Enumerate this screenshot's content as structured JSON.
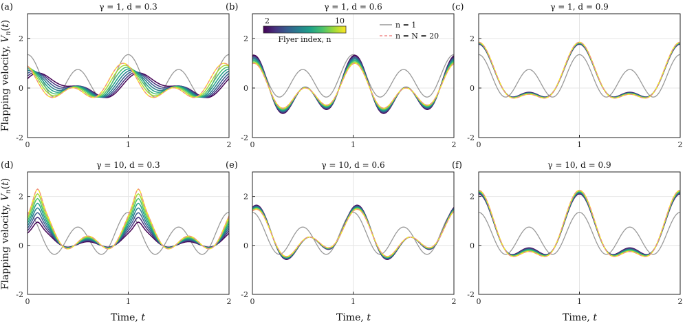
{
  "colors": {
    "reference_n1": "#999999",
    "last_flyer": "#f08a8a",
    "viridis": [
      "#440154",
      "#46327e",
      "#365c8d",
      "#277f8e",
      "#1fa187",
      "#4ac16d",
      "#a0da39",
      "#fde725"
    ]
  },
  "figure": {
    "xlabel": "Time, t",
    "ylabel": "Flapping velocity, V_n(t)",
    "xlabel_html": "Time, <tspan font-style='italic'>t</tspan>",
    "ylabel_html": "Flapping velocity, <tspan font-style='italic'>V</tspan><tspan font-style='italic' font-size='10' dy='3'>n</tspan><tspan dy='-3'>(</tspan><tspan font-style='italic'>t</tspan>)"
  },
  "legend": {
    "colorbar_label": "Flyer index, n",
    "colorbar_min": "2",
    "colorbar_max": "10",
    "entry_n1": "n = 1",
    "entry_last": "n = N = 20"
  },
  "chart_data": [
    {
      "panel": "(a)",
      "type": "line",
      "title": "γ = 1, d = 0.3",
      "gamma": 1,
      "d": 0.3,
      "xlim": [
        0,
        2
      ],
      "ylim": [
        -2,
        3
      ],
      "xticks": [
        0,
        1,
        2
      ],
      "yticks": [
        -2,
        0,
        2
      ],
      "series_summary": "n=1: ~1.4 peaks at t=0,1,2, ~-0.8 at t=0.25,0.75; flyers n>=2 peak ~0.9 at t≈0.93, min ~-0.9 at t≈0.72"
    },
    {
      "panel": "(b)",
      "type": "line",
      "title": "γ = 1, d = 0.6",
      "gamma": 1,
      "d": 0.6,
      "xlim": [
        0,
        2
      ],
      "ylim": [
        -2,
        3
      ],
      "xticks": [
        0,
        1,
        2
      ],
      "yticks": [
        -2,
        0,
        2
      ],
      "series_summary": "flyers peak ~1.0 at t≈1, min ~-1.2 at t≈0.3"
    },
    {
      "panel": "(c)",
      "type": "line",
      "title": "γ = 1, d = 0.9",
      "gamma": 1,
      "d": 0.9,
      "xlim": [
        0,
        2
      ],
      "ylim": [
        -2,
        3
      ],
      "xticks": [
        0,
        1,
        2
      ],
      "yticks": [
        -2,
        0,
        2
      ],
      "series_summary": "flyers peak ~1.85 at t≈1, min ~-1.0 at t≈0.3"
    },
    {
      "panel": "(d)",
      "type": "line",
      "title": "γ = 10, d = 0.3",
      "gamma": 10,
      "d": 0.3,
      "xlim": [
        0,
        2
      ],
      "ylim": [
        -2,
        3
      ],
      "xticks": [
        0,
        1,
        2
      ],
      "yticks": [
        -2,
        0,
        2
      ],
      "series_summary": "flyers peak ~2.7 at t≈0.1, 1.1; min ~-1.2 at t≈0.75"
    },
    {
      "panel": "(e)",
      "type": "line",
      "title": "γ = 10, d = 0.6",
      "gamma": 10,
      "d": 0.6,
      "xlim": [
        0,
        2
      ],
      "ylim": [
        -2,
        3
      ],
      "xticks": [
        0,
        1,
        2
      ],
      "yticks": [
        -2,
        0,
        2
      ],
      "series_summary": "flyers peak ~1.7 at t≈0.97, min ~-1.1 at t≈0.3"
    },
    {
      "panel": "(f)",
      "type": "line",
      "title": "γ = 10, d = 0.9",
      "gamma": 10,
      "d": 0.9,
      "xlim": [
        0,
        2
      ],
      "ylim": [
        -2,
        3
      ],
      "xticks": [
        0,
        1,
        2
      ],
      "yticks": [
        -2,
        0,
        2
      ],
      "series_summary": "flyers peak ~2.2 at t≈1, min ~-1.2 at t≈0.3"
    }
  ]
}
